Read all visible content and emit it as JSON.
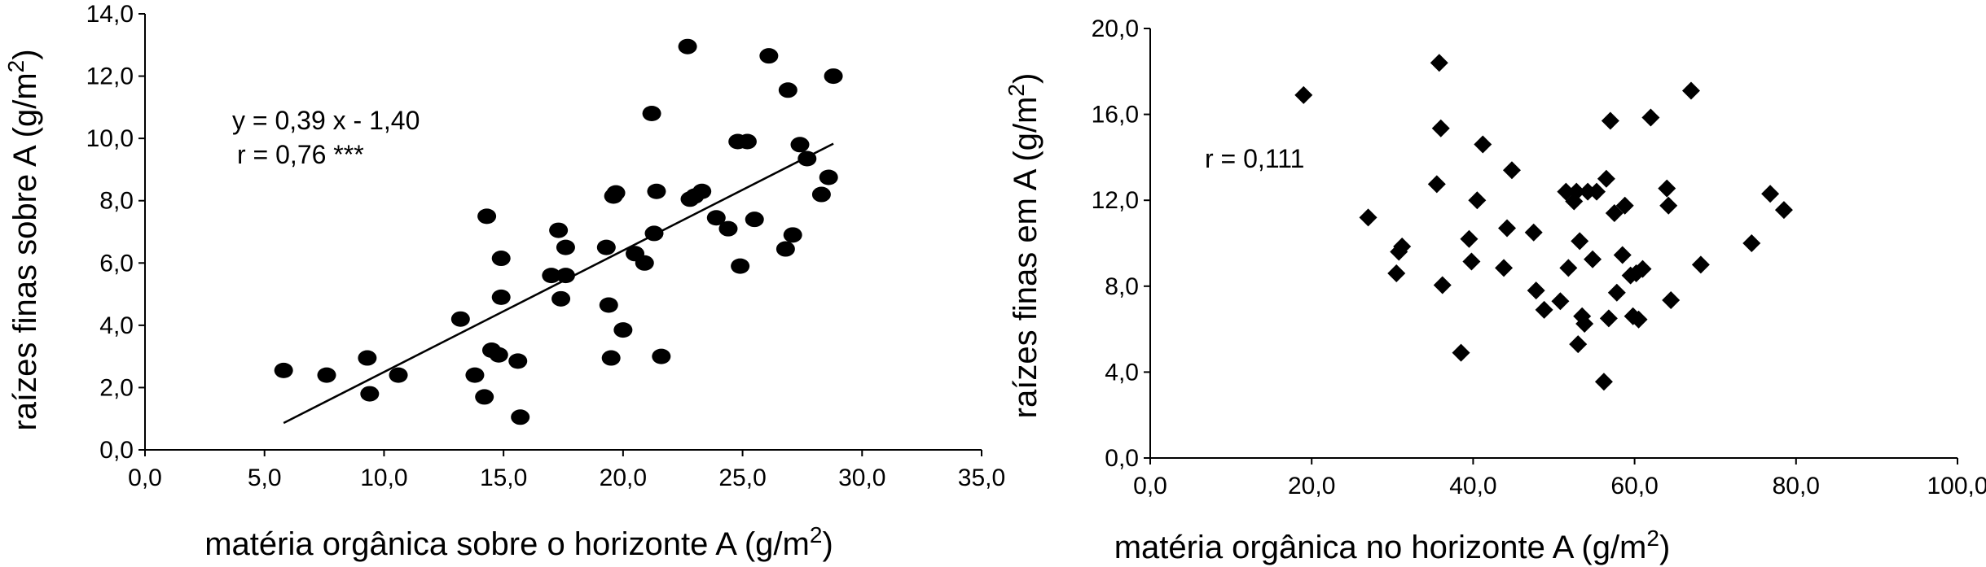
{
  "chart_data": [
    {
      "type": "scatter",
      "marker": "circle",
      "xlabel": "matéria orgânica sobre o horizonte A (g/m",
      "xlabel_sup": "2",
      "xlabel_end": ")",
      "ylabel": "raízes finas sobre A (g/m",
      "ylabel_sup": "2",
      "ylabel_end": ")",
      "xlim": [
        0,
        35
      ],
      "ylim": [
        0,
        14
      ],
      "x_ticks": [
        0,
        5,
        10,
        15,
        20,
        25,
        30,
        35
      ],
      "x_tick_labels": [
        "0,0",
        "5,0",
        "10,0",
        "15,0",
        "20,0",
        "25,0",
        "30,0",
        "35,0"
      ],
      "y_ticks": [
        0,
        2,
        4,
        6,
        8,
        10,
        12,
        14
      ],
      "y_tick_labels": [
        "0,0",
        "2,0",
        "4,0",
        "6,0",
        "8,0",
        "10,0",
        "12,0",
        "14,0"
      ],
      "annotations": [
        "y = 0,39 x - 1,40",
        "r = 0,76 ***"
      ],
      "trendline": {
        "slope": 0.39,
        "intercept": -1.4,
        "x_range": [
          5.8,
          28.8
        ]
      },
      "points": [
        [
          5.8,
          2.55
        ],
        [
          7.6,
          2.4
        ],
        [
          9.3,
          2.95
        ],
        [
          9.4,
          1.8
        ],
        [
          10.6,
          2.4
        ],
        [
          13.2,
          4.2
        ],
        [
          13.8,
          2.4
        ],
        [
          14.2,
          1.7
        ],
        [
          14.3,
          7.5
        ],
        [
          14.5,
          3.2
        ],
        [
          14.8,
          3.05
        ],
        [
          14.9,
          4.9
        ],
        [
          14.9,
          6.15
        ],
        [
          15.6,
          2.85
        ],
        [
          15.7,
          1.05
        ],
        [
          17.0,
          5.6
        ],
        [
          17.3,
          7.05
        ],
        [
          17.4,
          4.85
        ],
        [
          17.6,
          6.5
        ],
        [
          17.6,
          5.6
        ],
        [
          19.3,
          6.5
        ],
        [
          19.4,
          4.65
        ],
        [
          19.5,
          2.95
        ],
        [
          19.6,
          8.15
        ],
        [
          19.7,
          8.25
        ],
        [
          20.0,
          3.85
        ],
        [
          20.5,
          6.3
        ],
        [
          20.9,
          6.0
        ],
        [
          21.2,
          10.8
        ],
        [
          21.3,
          6.95
        ],
        [
          21.4,
          8.3
        ],
        [
          21.6,
          3.0
        ],
        [
          22.7,
          12.95
        ],
        [
          22.8,
          8.05
        ],
        [
          23.0,
          8.15
        ],
        [
          23.3,
          8.3
        ],
        [
          23.9,
          7.45
        ],
        [
          24.4,
          7.1
        ],
        [
          24.8,
          9.9
        ],
        [
          24.9,
          5.9
        ],
        [
          25.2,
          9.9
        ],
        [
          25.5,
          7.4
        ],
        [
          26.1,
          12.65
        ],
        [
          26.8,
          6.45
        ],
        [
          26.9,
          11.55
        ],
        [
          27.1,
          6.9
        ],
        [
          27.4,
          9.8
        ],
        [
          27.7,
          9.35
        ],
        [
          28.3,
          8.2
        ],
        [
          28.6,
          8.75
        ],
        [
          28.8,
          12.0
        ]
      ]
    },
    {
      "type": "scatter",
      "marker": "diamond",
      "xlabel": "matéria orgânica no horizonte A (g/m",
      "xlabel_sup": "2",
      "xlabel_end": ")",
      "ylabel": "raízes finas em A (g/m",
      "ylabel_sup": "2",
      "ylabel_end": ")",
      "xlim": [
        0,
        100
      ],
      "ylim": [
        0,
        20
      ],
      "x_ticks": [
        0,
        20,
        40,
        60,
        80,
        100
      ],
      "x_tick_labels": [
        "0,0",
        "20,0",
        "40,0",
        "60,0",
        "80,0",
        "100,0"
      ],
      "y_ticks": [
        0,
        4,
        8,
        12,
        16,
        20
      ],
      "y_tick_labels": [
        "0,0",
        "4,0",
        "8,0",
        "12,0",
        "16,0",
        "20,0"
      ],
      "annotations": [
        "r = 0,111"
      ],
      "points": [
        [
          19.0,
          16.9
        ],
        [
          27.0,
          11.2
        ],
        [
          30.5,
          8.6
        ],
        [
          30.8,
          9.6
        ],
        [
          31.2,
          9.85
        ],
        [
          35.5,
          12.75
        ],
        [
          35.8,
          18.4
        ],
        [
          36.0,
          15.35
        ],
        [
          36.2,
          8.05
        ],
        [
          38.5,
          4.9
        ],
        [
          39.5,
          10.2
        ],
        [
          39.8,
          9.15
        ],
        [
          40.5,
          12.0
        ],
        [
          41.2,
          14.6
        ],
        [
          43.8,
          8.85
        ],
        [
          44.2,
          10.7
        ],
        [
          44.8,
          13.4
        ],
        [
          47.5,
          10.5
        ],
        [
          47.8,
          7.8
        ],
        [
          48.8,
          6.9
        ],
        [
          50.8,
          7.3
        ],
        [
          51.5,
          12.4
        ],
        [
          51.8,
          8.85
        ],
        [
          52.5,
          11.95
        ],
        [
          52.8,
          12.4
        ],
        [
          53.0,
          5.3
        ],
        [
          53.2,
          10.1
        ],
        [
          53.5,
          6.6
        ],
        [
          53.8,
          6.25
        ],
        [
          54.2,
          12.4
        ],
        [
          54.8,
          9.25
        ],
        [
          55.3,
          12.4
        ],
        [
          56.2,
          3.55
        ],
        [
          56.5,
          13.0
        ],
        [
          56.8,
          6.5
        ],
        [
          57.0,
          15.7
        ],
        [
          57.5,
          11.4
        ],
        [
          57.8,
          7.7
        ],
        [
          58.5,
          9.45
        ],
        [
          58.8,
          11.75
        ],
        [
          59.5,
          8.5
        ],
        [
          59.8,
          6.6
        ],
        [
          60.2,
          8.6
        ],
        [
          60.5,
          6.45
        ],
        [
          61.0,
          8.8
        ],
        [
          62.0,
          15.85
        ],
        [
          64.0,
          12.55
        ],
        [
          64.2,
          11.75
        ],
        [
          64.5,
          7.35
        ],
        [
          67.0,
          17.1
        ],
        [
          68.2,
          9.0
        ],
        [
          74.5,
          10.0
        ],
        [
          76.8,
          12.3
        ],
        [
          78.5,
          11.55
        ]
      ]
    }
  ]
}
